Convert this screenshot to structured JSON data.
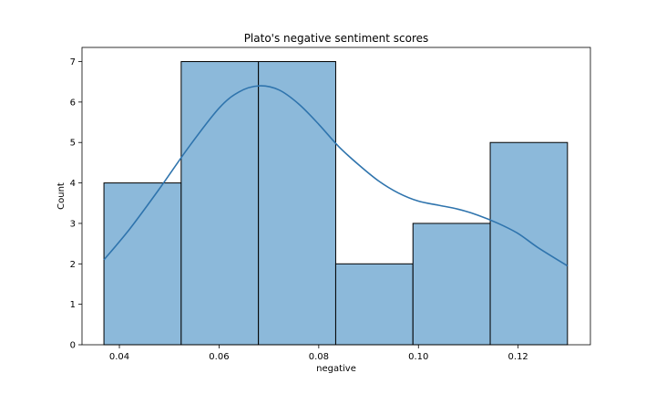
{
  "chart_data": {
    "type": "bar",
    "subtype": "histogram-with-kde",
    "title": "Plato's negative sentiment scores",
    "xlabel": "negative",
    "ylabel": "Count",
    "xlim": [
      0.0325,
      0.1345
    ],
    "ylim": [
      0,
      7.35
    ],
    "x_ticks": [
      0.04,
      0.06,
      0.08,
      0.1,
      0.12
    ],
    "x_tick_labels": [
      "0.04",
      "0.06",
      "0.08",
      "0.10",
      "0.12"
    ],
    "y_ticks": [
      0,
      1,
      2,
      3,
      4,
      5,
      6,
      7
    ],
    "y_tick_labels": [
      "0",
      "1",
      "2",
      "3",
      "4",
      "5",
      "6",
      "7"
    ],
    "bins": [
      {
        "x0": 0.0369,
        "x1": 0.0524,
        "count": 4
      },
      {
        "x0": 0.0524,
        "x1": 0.0679,
        "count": 7
      },
      {
        "x0": 0.0679,
        "x1": 0.0834,
        "count": 7
      },
      {
        "x0": 0.0834,
        "x1": 0.0989,
        "count": 2
      },
      {
        "x0": 0.0989,
        "x1": 0.1144,
        "count": 3
      },
      {
        "x0": 0.1144,
        "x1": 0.1299,
        "count": 5
      }
    ],
    "kde": {
      "x": [
        0.0369,
        0.042,
        0.048,
        0.054,
        0.06,
        0.064,
        0.068,
        0.072,
        0.076,
        0.08,
        0.084,
        0.088,
        0.092,
        0.096,
        0.1,
        0.104,
        0.108,
        0.112,
        0.116,
        0.12,
        0.124,
        0.1299
      ],
      "y": [
        2.1,
        2.85,
        3.85,
        4.9,
        5.85,
        6.25,
        6.4,
        6.3,
        5.95,
        5.45,
        4.9,
        4.45,
        4.05,
        3.75,
        3.55,
        3.45,
        3.35,
        3.2,
        3.0,
        2.75,
        2.4,
        1.95
      ]
    },
    "colors": {
      "bar_fill": "#8cb9da",
      "bar_edge": "#000000",
      "kde_line": "#2f74ad"
    },
    "grid": false,
    "legend": "none"
  }
}
